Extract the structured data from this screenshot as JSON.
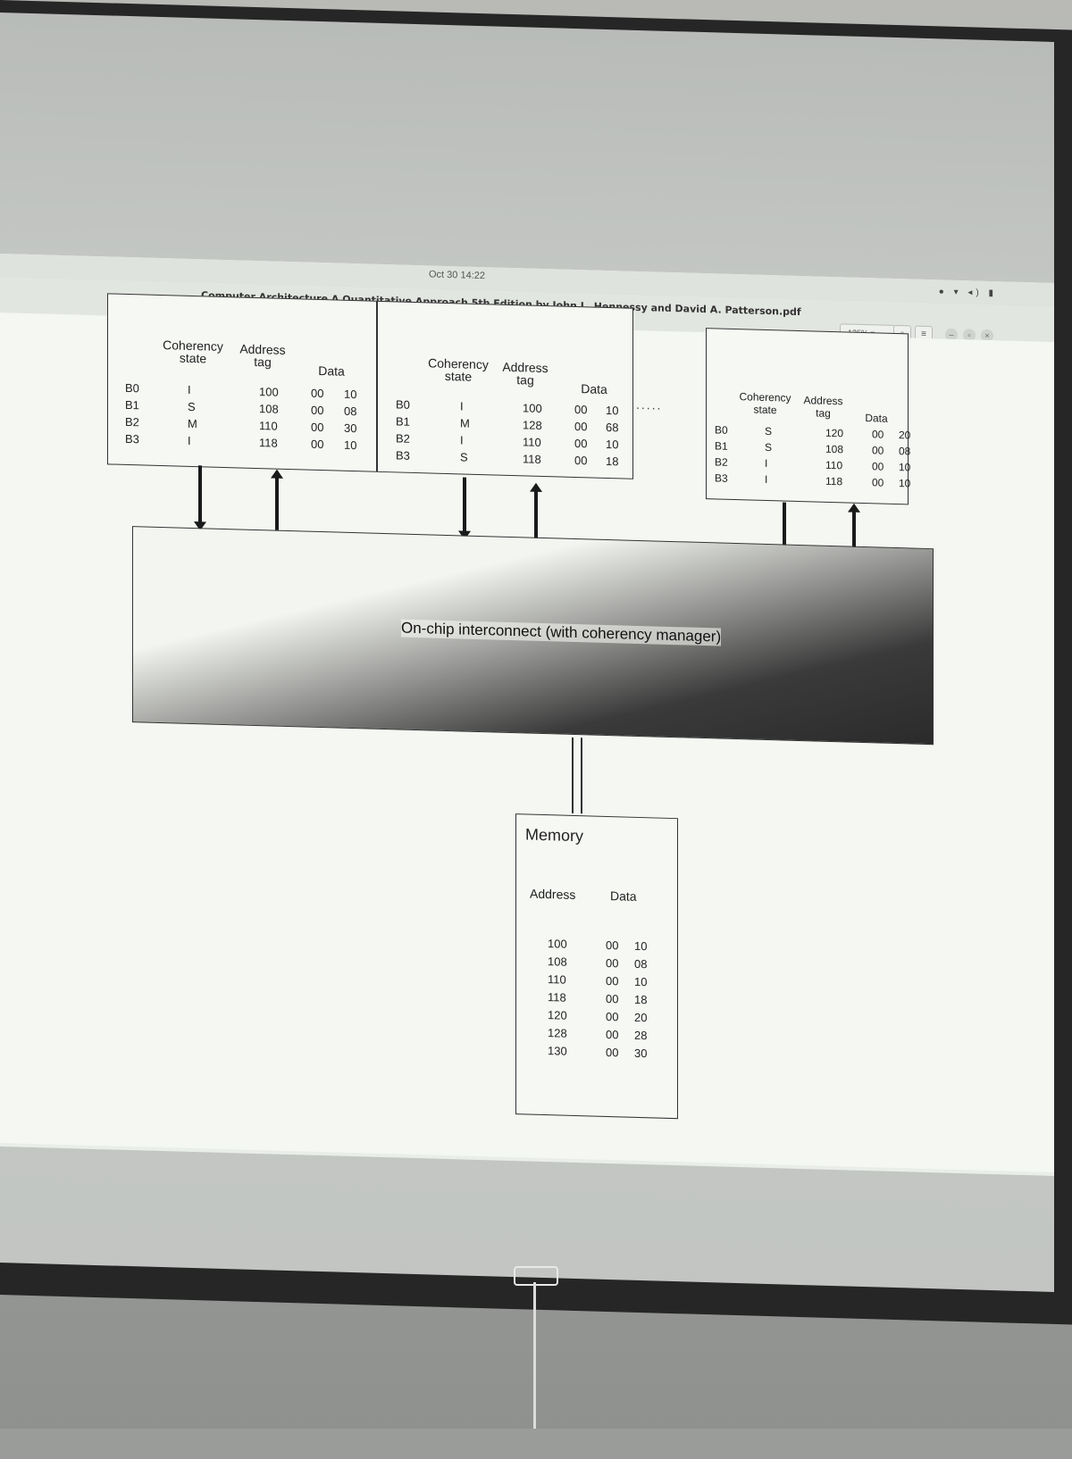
{
  "topbar": {
    "clock": "Oct 30 14:22"
  },
  "titlebar": {
    "document_title": "Computer Architecture A Quantitative Approach 5th Edition by John L. Hennessy and David A. Patterson.pdf",
    "zoom": "125%"
  },
  "caches": [
    {
      "headers": {
        "state": "Coherency state",
        "tag": "Address tag",
        "data": "Data"
      },
      "blocks": [
        {
          "block": "B0",
          "state": "I",
          "tag": "100",
          "data_hi": "00",
          "data_lo": "10"
        },
        {
          "block": "B1",
          "state": "S",
          "tag": "108",
          "data_hi": "00",
          "data_lo": "08"
        },
        {
          "block": "B2",
          "state": "M",
          "tag": "110",
          "data_hi": "00",
          "data_lo": "30"
        },
        {
          "block": "B3",
          "state": "I",
          "tag": "118",
          "data_hi": "00",
          "data_lo": "10"
        }
      ]
    },
    {
      "headers": {
        "state": "Coherency state",
        "tag": "Address tag",
        "data": "Data"
      },
      "blocks": [
        {
          "block": "B0",
          "state": "I",
          "tag": "100",
          "data_hi": "00",
          "data_lo": "10"
        },
        {
          "block": "B1",
          "state": "M",
          "tag": "128",
          "data_hi": "00",
          "data_lo": "68"
        },
        {
          "block": "B2",
          "state": "I",
          "tag": "110",
          "data_hi": "00",
          "data_lo": "10"
        },
        {
          "block": "B3",
          "state": "S",
          "tag": "118",
          "data_hi": "00",
          "data_lo": "18"
        }
      ]
    },
    {
      "headers": {
        "state": "Coherency state",
        "tag": "Address tag",
        "data": "Data"
      },
      "blocks": [
        {
          "block": "B0",
          "state": "S",
          "tag": "120",
          "data_hi": "00",
          "data_lo": "20"
        },
        {
          "block": "B1",
          "state": "S",
          "tag": "108",
          "data_hi": "00",
          "data_lo": "08"
        },
        {
          "block": "B2",
          "state": "I",
          "tag": "110",
          "data_hi": "00",
          "data_lo": "10"
        },
        {
          "block": "B3",
          "state": "I",
          "tag": "118",
          "data_hi": "00",
          "data_lo": "10"
        }
      ]
    }
  ],
  "ellipsis": ".....",
  "interconnect": {
    "label": "On-chip interconnect (with coherency manager)"
  },
  "memory": {
    "title": "Memory",
    "headers": {
      "address": "Address",
      "data": "Data"
    },
    "rows": [
      {
        "address": "100",
        "data_hi": "00",
        "data_lo": "10"
      },
      {
        "address": "108",
        "data_hi": "00",
        "data_lo": "08"
      },
      {
        "address": "110",
        "data_hi": "00",
        "data_lo": "10"
      },
      {
        "address": "118",
        "data_hi": "00",
        "data_lo": "18"
      },
      {
        "address": "120",
        "data_hi": "00",
        "data_lo": "20"
      },
      {
        "address": "128",
        "data_hi": "00",
        "data_lo": "28"
      },
      {
        "address": "130",
        "data_hi": "00",
        "data_lo": "30"
      }
    ]
  }
}
